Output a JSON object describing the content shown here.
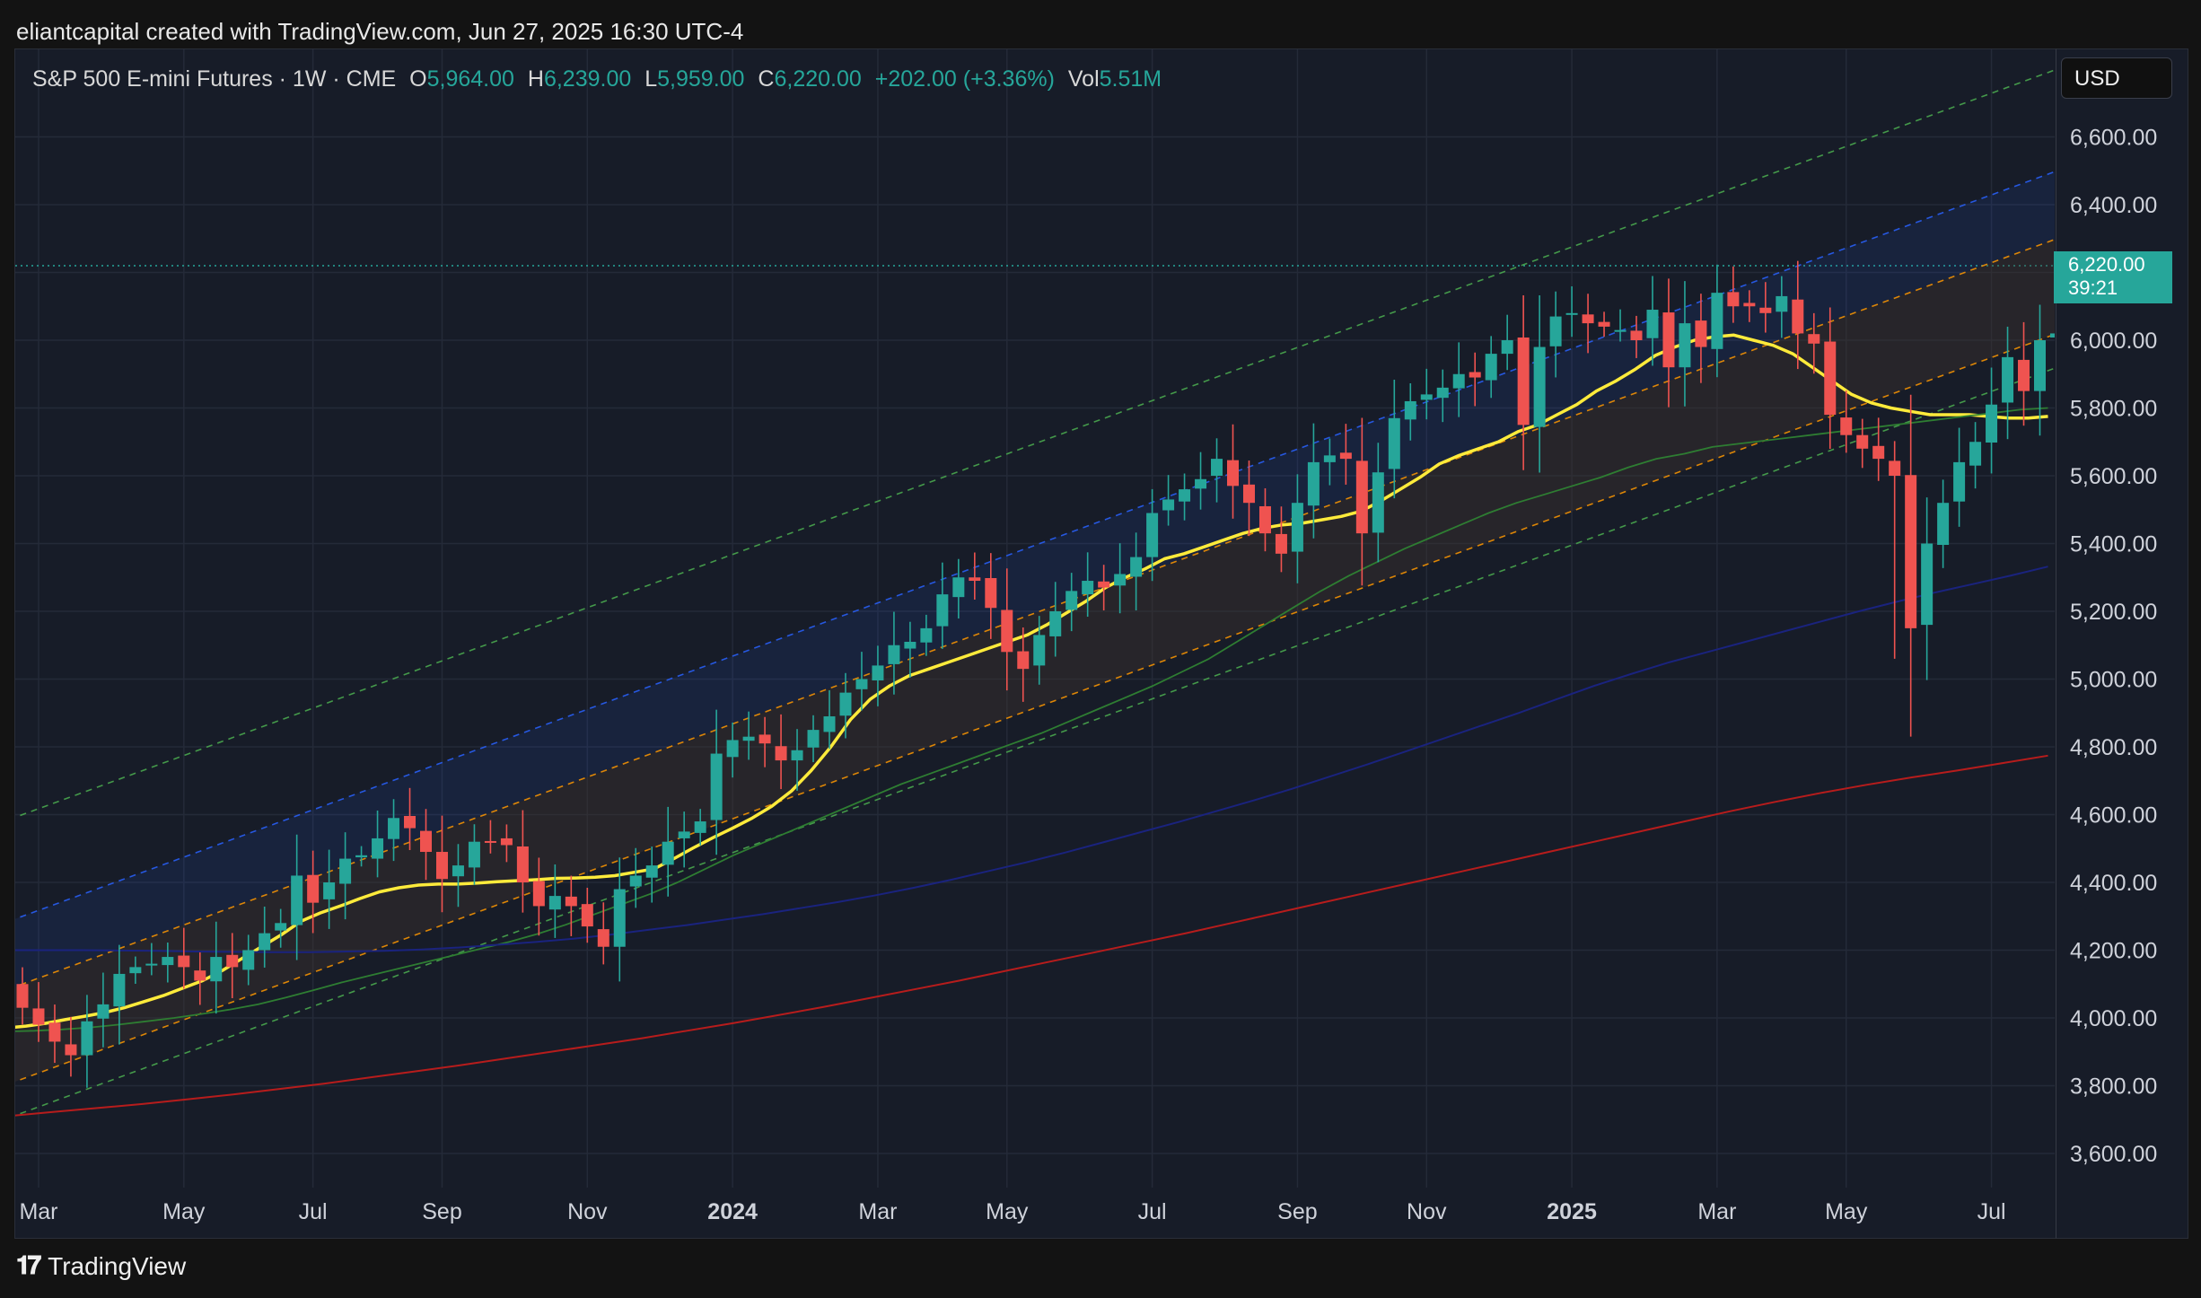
{
  "header": {
    "title": "eliantcapital created with TradingView.com, Jun 27, 2025 16:30 UTC-4"
  },
  "legend": {
    "symbol": "S&P 500 E-mini Futures · 1W · CME",
    "open_label": "O",
    "open": "5,964.00",
    "high_label": "H",
    "high": "6,239.00",
    "low_label": "L",
    "low": "5,959.00",
    "close_label": "C",
    "close": "6,220.00",
    "change": "+202.00 (+3.36%)",
    "vol_label": "Vol",
    "vol": "5.51M"
  },
  "currency_button": "USD",
  "last_price": {
    "value": "6,220.00",
    "countdown": "39:21"
  },
  "brand": "TradingView",
  "colors": {
    "up": "#26a69a",
    "down": "#ef5350",
    "sma20": "#ffeb3b",
    "sma50": "#2e7d32",
    "sma100": "#1a237e",
    "sma200": "#b71c1c",
    "band_outer": "#4caf50",
    "band_upper": "#2962ff",
    "band_mid": "#ff9800"
  },
  "chart_data": {
    "type": "candlestick",
    "interval": "1W",
    "ylim": [
      3520,
      6760
    ],
    "yticks": [
      "3,600.00",
      "3,800.00",
      "4,000.00",
      "4,200.00",
      "4,400.00",
      "4,600.00",
      "4,800.00",
      "5,000.00",
      "5,200.00",
      "5,400.00",
      "5,600.00",
      "5,800.00",
      "6,000.00",
      "6,200.00",
      "6,400.00",
      "6,600.00"
    ],
    "ytick_values": [
      3600,
      3800,
      4000,
      4200,
      4400,
      4600,
      4800,
      5000,
      5200,
      5400,
      5600,
      5800,
      6000,
      6200,
      6400,
      6600
    ],
    "xticks": [
      {
        "label": "Mar",
        "week": 1,
        "bold": false
      },
      {
        "label": "May",
        "week": 10,
        "bold": false
      },
      {
        "label": "Jul",
        "week": 18,
        "bold": false
      },
      {
        "label": "Sep",
        "week": 26,
        "bold": false
      },
      {
        "label": "Nov",
        "week": 35,
        "bold": false
      },
      {
        "label": "2024",
        "week": 44,
        "bold": true
      },
      {
        "label": "Mar",
        "week": 53,
        "bold": false
      },
      {
        "label": "May",
        "week": 61,
        "bold": false
      },
      {
        "label": "Jul",
        "week": 70,
        "bold": false
      },
      {
        "label": "Sep",
        "week": 79,
        "bold": false
      },
      {
        "label": "Nov",
        "week": 87,
        "bold": false
      },
      {
        "label": "2025",
        "week": 96,
        "bold": true
      },
      {
        "label": "Mar",
        "week": 105,
        "bold": false
      },
      {
        "label": "May",
        "week": 113,
        "bold": false
      },
      {
        "label": "Jul",
        "week": 122,
        "bold": false
      }
    ],
    "closes": [
      4030,
      3980,
      3930,
      3890,
      3990,
      4040,
      4130,
      4150,
      4160,
      4180,
      4150,
      4110,
      4180,
      4150,
      4200,
      4250,
      4280,
      4420,
      4340,
      4400,
      4470,
      4480,
      4530,
      4590,
      4560,
      4490,
      4410,
      4450,
      4520,
      4520,
      4510,
      4400,
      4330,
      4360,
      4330,
      4270,
      4210,
      4380,
      4420,
      4450,
      4520,
      4550,
      4580,
      4780,
      4820,
      4830,
      4810,
      4760,
      4790,
      4850,
      4890,
      4960,
      5000,
      5040,
      5100,
      5110,
      5150,
      5250,
      5300,
      5290,
      5210,
      5080,
      5030,
      5130,
      5200,
      5260,
      5290,
      5270,
      5310,
      5360,
      5490,
      5530,
      5560,
      5590,
      5650,
      5570,
      5520,
      5430,
      5370,
      5520,
      5640,
      5660,
      5650,
      5430,
      5610,
      5770,
      5820,
      5840,
      5860,
      5900,
      5890,
      5960,
      6000,
      5750,
      5980,
      6070,
      6080,
      6050,
      6040,
      6030,
      6000,
      6090,
      5920,
      6050,
      5980,
      6140,
      6100,
      6100,
      6080,
      6130,
      6020,
      5990,
      5780,
      5720,
      5680,
      5650,
      5600,
      5150,
      5400,
      5520,
      5640,
      5700,
      5810,
      5950,
      5850,
      6000,
      6020,
      6010,
      6220
    ],
    "series": [
      {
        "name": "",
        "color": "#ffeb3b",
        "values": [
          3970,
          3976,
          3984,
          3995,
          4005,
          4016,
          4030,
          4048,
          4066,
          4088,
          4110,
          4140,
          4175,
          4210,
          4245,
          4285,
          4310,
          4330,
          4352,
          4372,
          4384,
          4392,
          4395,
          4395,
          4398,
          4402,
          4405,
          4408,
          4412,
          4413,
          4415,
          4420,
          4430,
          4440,
          4470,
          4502,
          4532,
          4560,
          4590,
          4625,
          4670,
          4730,
          4800,
          4880,
          4940,
          4980,
          5010,
          5030,
          5050,
          5070,
          5090,
          5110,
          5130,
          5160,
          5195,
          5230,
          5270,
          5300,
          5325,
          5355,
          5370,
          5390,
          5410,
          5430,
          5445,
          5455,
          5460,
          5470,
          5480,
          5495,
          5525,
          5560,
          5595,
          5635,
          5660,
          5680,
          5700,
          5730,
          5750,
          5780,
          5810,
          5850,
          5880,
          5915,
          5955,
          5980,
          6000,
          6010,
          6015,
          6000,
          5985,
          5960,
          5920,
          5880,
          5840,
          5815,
          5800,
          5790,
          5780,
          5780,
          5780,
          5775,
          5770,
          5770,
          5775
        ]
      },
      {
        "name": "",
        "color": "#2e7d32",
        "values": [
          3960,
          3962,
          3966,
          3972,
          3980,
          3990,
          4000,
          4012,
          4025,
          4040,
          4060,
          4082,
          4105,
          4125,
          4145,
          4165,
          4185,
          4205,
          4225,
          4248,
          4275,
          4305,
          4335,
          4365,
          4400,
          4440,
          4480,
          4515,
          4550,
          4585,
          4620,
          4655,
          4690,
          4720,
          4750,
          4780,
          4810,
          4840,
          4875,
          4910,
          4945,
          4980,
          5020,
          5060,
          5110,
          5160,
          5210,
          5260,
          5305,
          5345,
          5385,
          5420,
          5455,
          5490,
          5520,
          5545,
          5570,
          5595,
          5625,
          5650,
          5665,
          5685,
          5695,
          5705,
          5715,
          5725,
          5735,
          5745,
          5755,
          5765,
          5775,
          5785,
          5795,
          5800
        ]
      },
      {
        "name": "",
        "color": "#1a237e",
        "values": [
          4200,
          4200,
          4200,
          4199,
          4198,
          4196,
          4195,
          4194,
          4194,
          4196,
          4198,
          4202,
          4208,
          4216,
          4224,
          4234,
          4246,
          4260,
          4274,
          4290,
          4306,
          4324,
          4342,
          4362,
          4384,
          4408,
          4434,
          4460,
          4488,
          4518,
          4548,
          4578,
          4610,
          4642,
          4676,
          4712,
          4748,
          4786,
          4824,
          4862,
          4900,
          4940,
          4980,
          5016,
          5050,
          5080,
          5110,
          5140,
          5170,
          5200,
          5228,
          5255,
          5280,
          5305,
          5332
        ]
      },
      {
        "name": "",
        "color": "#b71c1c",
        "values": [
          3710,
          3722,
          3734,
          3746,
          3760,
          3774,
          3790,
          3806,
          3824,
          3842,
          3860,
          3880,
          3900,
          3920,
          3940,
          3962,
          3984,
          4008,
          4032,
          4058,
          4084,
          4110,
          4138,
          4166,
          4194,
          4222,
          4250,
          4280,
          4310,
          4340,
          4370,
          4400,
          4430,
          4460,
          4490,
          4520,
          4550,
          4580,
          4610,
          4638,
          4664,
          4688,
          4710,
          4730,
          4752,
          4774
        ]
      }
    ],
    "channel": {
      "start_week": 0,
      "end_week": 125.5,
      "mid_start": 3960,
      "mid_end": 6150,
      "offsets": [
        -240,
        -140,
        140,
        340,
        640
      ]
    }
  }
}
